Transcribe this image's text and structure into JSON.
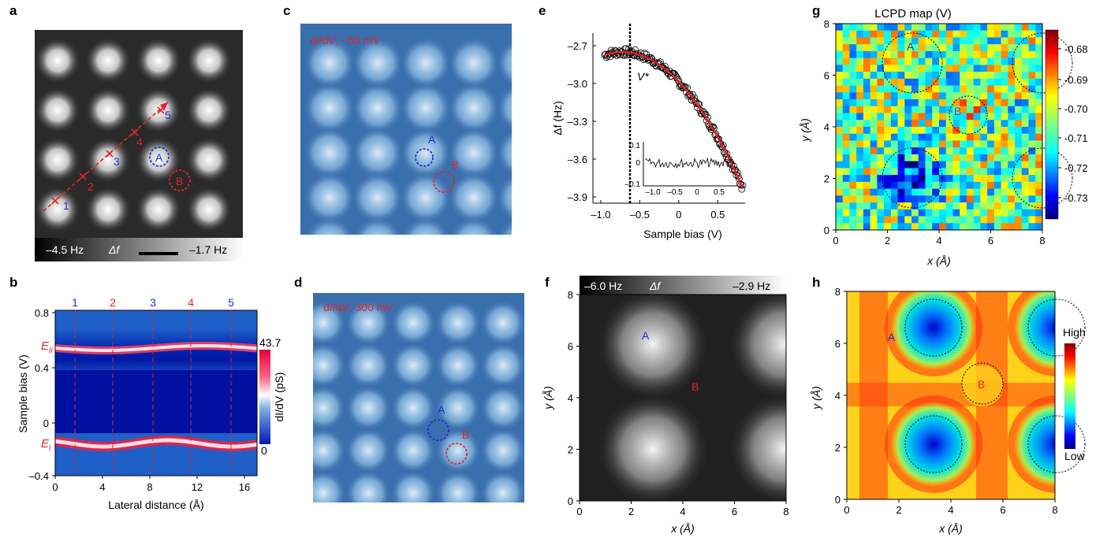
{
  "panels": {
    "a": {
      "label": "a",
      "colorbar": {
        "min_label": "–4.5 Hz",
        "symbol": "Δf",
        "max_label": "–1.7 Hz"
      },
      "site_a": "A",
      "site_b": "B",
      "path_points": [
        "1",
        "2",
        "3",
        "4",
        "5"
      ]
    },
    "b": {
      "label": "b",
      "ylabel": "Sample bias (V)",
      "xlabel": "Lateral distance (Å)",
      "yticks": [
        "0.8",
        "0.4",
        "0",
        "–0.4"
      ],
      "xticks": [
        "0",
        "4",
        "8",
        "12",
        "16"
      ],
      "top_labels": [
        "1",
        "2",
        "3",
        "4",
        "5"
      ],
      "e_ii": "E",
      "e_ii_sub": "ii",
      "e_i": "E",
      "e_i_sub": "i",
      "colorbar_max": "43.7",
      "colorbar_min": "0",
      "colorbar_label": "dI/dV (pS)"
    },
    "c": {
      "label": "c",
      "caption_pre": "d",
      "caption_i": "I",
      "caption_mid": "/d",
      "caption_v": "V",
      "caption_post": ", –50 mV",
      "site_a": "A",
      "site_b": "B"
    },
    "d": {
      "label": "d",
      "caption_pre": "d",
      "caption_i": "I",
      "caption_mid": "/d",
      "caption_v": "V",
      "caption_post": ", 300 mV",
      "site_a": "A",
      "site_b": "B"
    },
    "e": {
      "label": "e",
      "ylabel": "Δf (Hz)",
      "xlabel": "Sample bias (V)",
      "yticks": [
        "–2.7",
        "–3.0",
        "–3.3",
        "–3.6",
        "–3.9"
      ],
      "xticks": [
        "–1.0",
        "–0.5",
        "0",
        "0.5"
      ],
      "vstar": "V*",
      "inset_yticks": [
        "0.1",
        "0",
        "–0.1"
      ],
      "inset_xticks": [
        "–1.0",
        "–0.5",
        "0",
        "0.5"
      ]
    },
    "f": {
      "label": "f",
      "colorbar": {
        "min_label": "–6.0 Hz",
        "symbol": "Δf",
        "max_label": "–2.9 Hz"
      },
      "ylabel": "y (Å)",
      "xlabel": "x (Å)",
      "yticks": [
        "8",
        "6",
        "4",
        "2",
        "0"
      ],
      "xticks": [
        "0",
        "2",
        "4",
        "6",
        "8"
      ],
      "site_a": "A",
      "site_b": "B"
    },
    "g": {
      "label": "g",
      "title": "LCPD map (V)",
      "ylabel": "y (Å)",
      "xlabel": "x (Å)",
      "yticks": [
        "8",
        "6",
        "4",
        "2",
        "0"
      ],
      "xticks": [
        "0",
        "2",
        "4",
        "6",
        "8"
      ],
      "cbar_ticks": [
        "-0.68",
        "-0.69",
        "-0.70",
        "-0.71",
        "-0.72",
        "-0.73"
      ],
      "site_a": "A",
      "site_b": "B"
    },
    "h": {
      "label": "h",
      "ylabel": "y (Å)",
      "xlabel": "x (Å)",
      "yticks": [
        "8",
        "6",
        "4",
        "2",
        "0"
      ],
      "xticks": [
        "0",
        "2",
        "4",
        "6",
        "8"
      ],
      "cbar_high": "High",
      "cbar_low": "Low",
      "site_a": "A",
      "site_b": "B"
    }
  },
  "colors": {
    "site_a": "#1f2fd0",
    "site_b": "#e0242a",
    "fit": "#e02020"
  },
  "chart_data": {
    "type": "scatter",
    "x_range": [
      -0.95,
      0.82
    ],
    "ylim": [
      -3.95,
      -2.6
    ],
    "xlim": [
      -1.1,
      0.85
    ],
    "vstar_x": -0.7,
    "fit_parabola": {
      "vertex_x": -0.72,
      "vertex_y": -2.75,
      "endpoint_x": 0.82,
      "endpoint_y": -3.83
    }
  }
}
